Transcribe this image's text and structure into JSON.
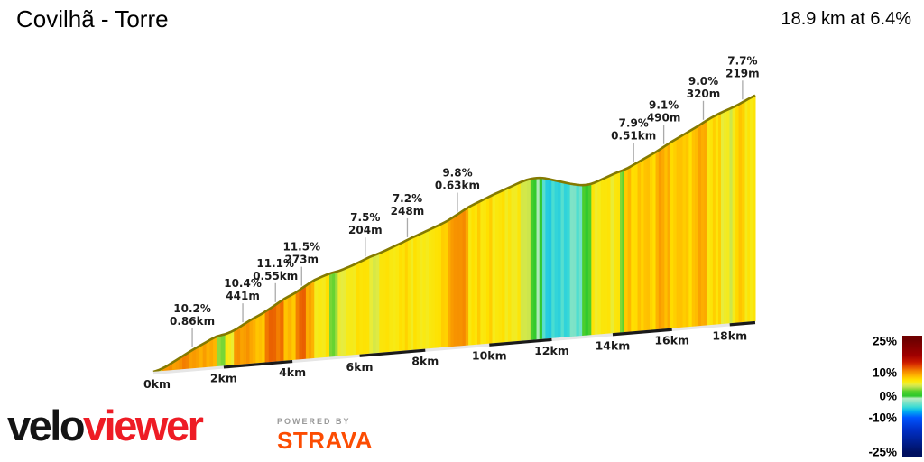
{
  "header": {
    "title": "Covilhã - Torre",
    "summary": "18.9 km at 6.4%"
  },
  "chart_data": {
    "type": "area",
    "title": "Covilhã - Torre",
    "subtitle": "18.9 km at 6.4%",
    "x_axis_unit": "km",
    "xlim_km": [
      0,
      18.9
    ],
    "total_distance_km": 18.9,
    "avg_gradient_pct": 6.4,
    "elevation_gain_m_approx": 1210,
    "grid": false,
    "legend_position": "bottom-right",
    "x_ticks": [
      {
        "km": 0,
        "label": "0km"
      },
      {
        "km": 2,
        "label": "2km"
      },
      {
        "km": 4,
        "label": "4km"
      },
      {
        "km": 6,
        "label": "6km"
      },
      {
        "km": 8,
        "label": "8km"
      },
      {
        "km": 10,
        "label": "10km"
      },
      {
        "km": 12,
        "label": "12km"
      },
      {
        "km": 14,
        "label": "14km"
      },
      {
        "km": 16,
        "label": "16km"
      },
      {
        "km": 18,
        "label": "18km"
      }
    ],
    "segments": [
      {
        "from_km": 0.0,
        "grad_pct": 4.5
      },
      {
        "from_km": 0.25,
        "grad_pct": 10.2
      },
      {
        "from_km": 1.11,
        "grad_pct": 9.0
      },
      {
        "from_km": 1.8,
        "grad_pct": 2.5
      },
      {
        "from_km": 2.05,
        "grad_pct": 6.0
      },
      {
        "from_km": 2.3,
        "grad_pct": 10.4
      },
      {
        "from_km": 2.75,
        "grad_pct": 8.5
      },
      {
        "from_km": 3.2,
        "grad_pct": 11.1
      },
      {
        "from_km": 3.75,
        "grad_pct": 8.0
      },
      {
        "from_km": 4.1,
        "grad_pct": 11.5
      },
      {
        "from_km": 4.4,
        "grad_pct": 9.5
      },
      {
        "from_km": 4.65,
        "grad_pct": 6.5
      },
      {
        "from_km": 5.1,
        "grad_pct": 2.5
      },
      {
        "from_km": 5.35,
        "grad_pct": 5.5
      },
      {
        "from_km": 5.6,
        "grad_pct": 6.5
      },
      {
        "from_km": 6.0,
        "grad_pct": 7.5
      },
      {
        "from_km": 6.3,
        "grad_pct": 5.0
      },
      {
        "from_km": 6.6,
        "grad_pct": 6.8
      },
      {
        "from_km": 7.3,
        "grad_pct": 7.2
      },
      {
        "from_km": 7.55,
        "grad_pct": 6.5
      },
      {
        "from_km": 8.3,
        "grad_pct": 7.0
      },
      {
        "from_km": 8.7,
        "grad_pct": 9.8
      },
      {
        "from_km": 9.35,
        "grad_pct": 7.0
      },
      {
        "from_km": 10.1,
        "grad_pct": 6.2
      },
      {
        "from_km": 10.7,
        "grad_pct": 6.5
      },
      {
        "from_km": 11.0,
        "grad_pct": 4.5
      },
      {
        "from_km": 11.2,
        "grad_pct": 3.5
      },
      {
        "from_km": 11.32,
        "grad_pct": 1.5
      },
      {
        "from_km": 11.42,
        "grad_pct": -0.5
      },
      {
        "from_km": 11.7,
        "grad_pct": -5.0
      },
      {
        "from_km": 12.6,
        "grad_pct": -3.5
      },
      {
        "from_km": 13.0,
        "grad_pct": 1.0
      },
      {
        "from_km": 13.3,
        "grad_pct": 6.0
      },
      {
        "from_km": 14.25,
        "grad_pct": 2.0
      },
      {
        "from_km": 14.4,
        "grad_pct": 7.9
      },
      {
        "from_km": 14.95,
        "grad_pct": 7.5
      },
      {
        "from_km": 15.45,
        "grad_pct": 9.1
      },
      {
        "from_km": 15.95,
        "grad_pct": 7.8
      },
      {
        "from_km": 16.9,
        "grad_pct": 9.0
      },
      {
        "from_km": 17.22,
        "grad_pct": 6.8
      },
      {
        "from_km": 17.7,
        "grad_pct": 5.2
      },
      {
        "from_km": 18.1,
        "grad_pct": 6.5
      },
      {
        "from_km": 18.32,
        "grad_pct": 7.7
      },
      {
        "from_km": 18.54,
        "grad_pct": 6.5
      }
    ],
    "annotations": [
      {
        "grad": "10.2%",
        "length": "0.86km",
        "at_km": 1.1
      },
      {
        "grad": "10.4%",
        "length": "441m",
        "at_km": 2.55
      },
      {
        "grad": "11.1%",
        "length": "0.55km",
        "at_km": 3.5
      },
      {
        "grad": "11.5%",
        "length": "273m",
        "at_km": 4.27
      },
      {
        "grad": "7.5%",
        "length": "204m",
        "at_km": 6.17
      },
      {
        "grad": "7.2%",
        "length": "248m",
        "at_km": 7.45
      },
      {
        "grad": "9.8%",
        "length": "0.63km",
        "at_km": 9.0
      },
      {
        "grad": "7.9%",
        "length": "0.51km",
        "at_km": 14.7
      },
      {
        "grad": "9.1%",
        "length": "490m",
        "at_km": 15.72
      },
      {
        "grad": "9.0%",
        "length": "320m",
        "at_km": 17.08
      },
      {
        "grad": "7.7%",
        "length": "219m",
        "at_km": 18.45
      }
    ],
    "legend": {
      "entries": [
        {
          "label": "25%",
          "value": 25
        },
        {
          "label": "10%",
          "value": 10
        },
        {
          "label": "0%",
          "value": 0
        },
        {
          "label": "-10%",
          "value": -10
        },
        {
          "label": "-25%",
          "value": -25
        }
      ],
      "scale_stops": [
        [
          -25,
          "#001060"
        ],
        [
          -15,
          "#0030c8"
        ],
        [
          -10,
          "#0055ff"
        ],
        [
          -7,
          "#00b0f0"
        ],
        [
          -5,
          "#3cdcd4"
        ],
        [
          -2.5,
          "#8ce4c4"
        ],
        [
          -1,
          "#b8ecc4"
        ],
        [
          0,
          "#2cc82c"
        ],
        [
          2,
          "#52d02c"
        ],
        [
          3,
          "#92da3c"
        ],
        [
          4,
          "#c4e450"
        ],
        [
          5,
          "#e6ec40"
        ],
        [
          6,
          "#f8ea14"
        ],
        [
          7,
          "#ffe000"
        ],
        [
          8,
          "#ffc800"
        ],
        [
          9,
          "#fdae00"
        ],
        [
          10,
          "#f89800"
        ],
        [
          11,
          "#f38000"
        ],
        [
          12,
          "#ea6000"
        ],
        [
          13.5,
          "#dc3800"
        ],
        [
          15,
          "#c81800"
        ],
        [
          18,
          "#a00000"
        ],
        [
          25,
          "#700000"
        ]
      ]
    },
    "colors": {
      "profile_edge": "#847a00",
      "leader_line": "#aaaaaa",
      "scale_bar_dark": "#1a1a1a",
      "scale_bar_light": "#e6e6e6",
      "text": "#1c1c1c"
    }
  },
  "footer": {
    "logo_black": "velo",
    "logo_red": "viewer",
    "powered_by": "POWERED BY",
    "strava": "STRAVA",
    "strava_color": "#fc4c02",
    "logo_red_color": "#ee1c25"
  }
}
